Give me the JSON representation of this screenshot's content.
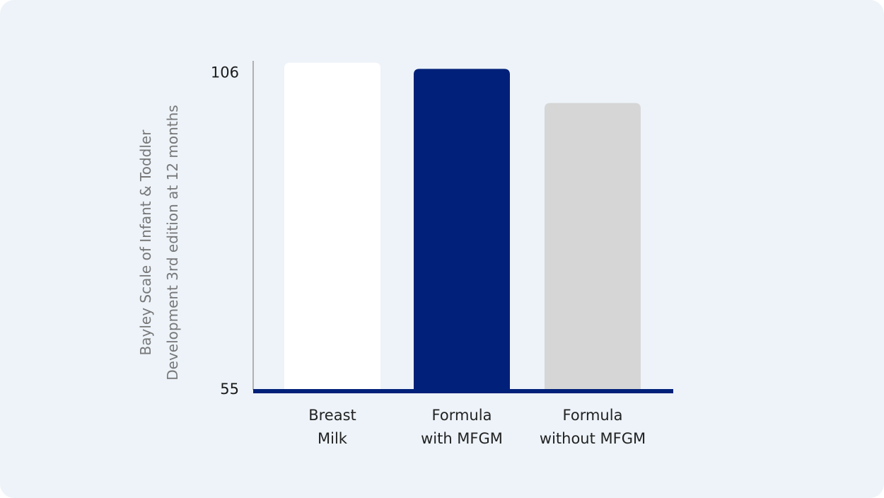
{
  "chart_data": {
    "type": "bar",
    "y_label": "Bayley Scale of Infant & Toddler\nDevelopment 3rd edition at 12 months",
    "categories": [
      "Breast\nMilk",
      "Formula\nwith MFGM",
      "Formula\nwithout MFGM"
    ],
    "values": [
      107.7,
      106.7,
      101.2
    ],
    "colors": [
      "#ffffff",
      "#002079",
      "#d6d6d6"
    ],
    "ylim": [
      55,
      108
    ],
    "yticks": [
      55,
      106
    ],
    "grid": false
  }
}
